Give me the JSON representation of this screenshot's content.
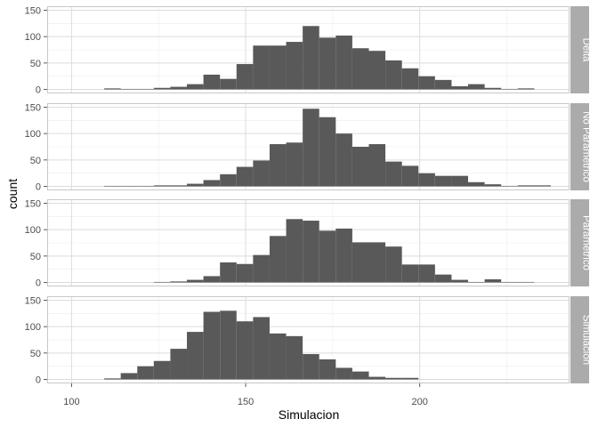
{
  "chart_data": {
    "type": "bar",
    "kind": "faceted-histogram",
    "xlabel": "Simulacion",
    "ylabel": "count",
    "xlim": [
      93,
      243
    ],
    "ylim": [
      -7.5,
      157.5
    ],
    "x_ticks": [
      100,
      150,
      200
    ],
    "y_ticks": [
      0,
      50,
      100,
      150
    ],
    "bin_width": 4.75,
    "grid": true,
    "bar_color": "#595959",
    "strip_color": "#ababab",
    "panels": [
      {
        "name": "Delta",
        "bins": [
          {
            "x": 111.75,
            "value": 2
          },
          {
            "x": 116.5,
            "value": 0
          },
          {
            "x": 121.25,
            "value": 0
          },
          {
            "x": 126,
            "value": 3
          },
          {
            "x": 130.75,
            "value": 5
          },
          {
            "x": 135.5,
            "value": 10
          },
          {
            "x": 140.25,
            "value": 28
          },
          {
            "x": 145,
            "value": 20
          },
          {
            "x": 149.75,
            "value": 48
          },
          {
            "x": 154.5,
            "value": 83
          },
          {
            "x": 159.25,
            "value": 83
          },
          {
            "x": 164,
            "value": 90
          },
          {
            "x": 168.75,
            "value": 120
          },
          {
            "x": 173.5,
            "value": 98
          },
          {
            "x": 178.25,
            "value": 102
          },
          {
            "x": 183,
            "value": 78
          },
          {
            "x": 187.75,
            "value": 73
          },
          {
            "x": 192.5,
            "value": 55
          },
          {
            "x": 197.25,
            "value": 40
          },
          {
            "x": 202,
            "value": 25
          },
          {
            "x": 206.75,
            "value": 18
          },
          {
            "x": 211.5,
            "value": 6
          },
          {
            "x": 216.25,
            "value": 10
          },
          {
            "x": 221,
            "value": 3
          },
          {
            "x": 225.75,
            "value": 0
          },
          {
            "x": 230.5,
            "value": 2
          }
        ]
      },
      {
        "name": "No Parametrico",
        "bins": [
          {
            "x": 111.75,
            "value": 0
          },
          {
            "x": 116.5,
            "value": 1
          },
          {
            "x": 121.25,
            "value": 1
          },
          {
            "x": 126,
            "value": 2
          },
          {
            "x": 130.75,
            "value": 2
          },
          {
            "x": 135.5,
            "value": 5
          },
          {
            "x": 140.25,
            "value": 12
          },
          {
            "x": 145,
            "value": 23
          },
          {
            "x": 149.75,
            "value": 37
          },
          {
            "x": 154.5,
            "value": 49
          },
          {
            "x": 159.25,
            "value": 80
          },
          {
            "x": 164,
            "value": 83
          },
          {
            "x": 168.75,
            "value": 147
          },
          {
            "x": 173.5,
            "value": 131
          },
          {
            "x": 178.25,
            "value": 100
          },
          {
            "x": 183,
            "value": 75
          },
          {
            "x": 187.75,
            "value": 80
          },
          {
            "x": 192.5,
            "value": 47
          },
          {
            "x": 197.25,
            "value": 39
          },
          {
            "x": 202,
            "value": 25
          },
          {
            "x": 206.75,
            "value": 20
          },
          {
            "x": 211.5,
            "value": 20
          },
          {
            "x": 216.25,
            "value": 8
          },
          {
            "x": 221,
            "value": 4
          },
          {
            "x": 225.75,
            "value": 1
          },
          {
            "x": 230.5,
            "value": 2
          },
          {
            "x": 235.25,
            "value": 2
          }
        ]
      },
      {
        "name": "Parametrico",
        "bins": [
          {
            "x": 126,
            "value": 1
          },
          {
            "x": 130.75,
            "value": 2
          },
          {
            "x": 135.5,
            "value": 5
          },
          {
            "x": 140.25,
            "value": 12
          },
          {
            "x": 145,
            "value": 38
          },
          {
            "x": 149.75,
            "value": 35
          },
          {
            "x": 154.5,
            "value": 52
          },
          {
            "x": 159.25,
            "value": 88
          },
          {
            "x": 164,
            "value": 120
          },
          {
            "x": 168.75,
            "value": 117
          },
          {
            "x": 173.5,
            "value": 98
          },
          {
            "x": 178.25,
            "value": 102
          },
          {
            "x": 183,
            "value": 76
          },
          {
            "x": 187.75,
            "value": 76
          },
          {
            "x": 192.5,
            "value": 68
          },
          {
            "x": 197.25,
            "value": 34
          },
          {
            "x": 202,
            "value": 34
          },
          {
            "x": 206.75,
            "value": 15
          },
          {
            "x": 211.5,
            "value": 5
          },
          {
            "x": 216.25,
            "value": 0
          },
          {
            "x": 221,
            "value": 6
          },
          {
            "x": 225.75,
            "value": 0
          },
          {
            "x": 230.5,
            "value": 1
          }
        ]
      },
      {
        "name": "Simulacion",
        "bins": [
          {
            "x": 111.75,
            "value": 2
          },
          {
            "x": 116.5,
            "value": 12
          },
          {
            "x": 121.25,
            "value": 25
          },
          {
            "x": 126,
            "value": 35
          },
          {
            "x": 130.75,
            "value": 58
          },
          {
            "x": 135.5,
            "value": 90
          },
          {
            "x": 140.25,
            "value": 128
          },
          {
            "x": 145,
            "value": 130
          },
          {
            "x": 149.75,
            "value": 110
          },
          {
            "x": 154.5,
            "value": 118
          },
          {
            "x": 159.25,
            "value": 87
          },
          {
            "x": 164,
            "value": 82
          },
          {
            "x": 168.75,
            "value": 48
          },
          {
            "x": 173.5,
            "value": 38
          },
          {
            "x": 178.25,
            "value": 22
          },
          {
            "x": 183,
            "value": 15
          },
          {
            "x": 187.75,
            "value": 5
          },
          {
            "x": 192.5,
            "value": 3
          },
          {
            "x": 197.25,
            "value": 3
          }
        ]
      }
    ]
  }
}
